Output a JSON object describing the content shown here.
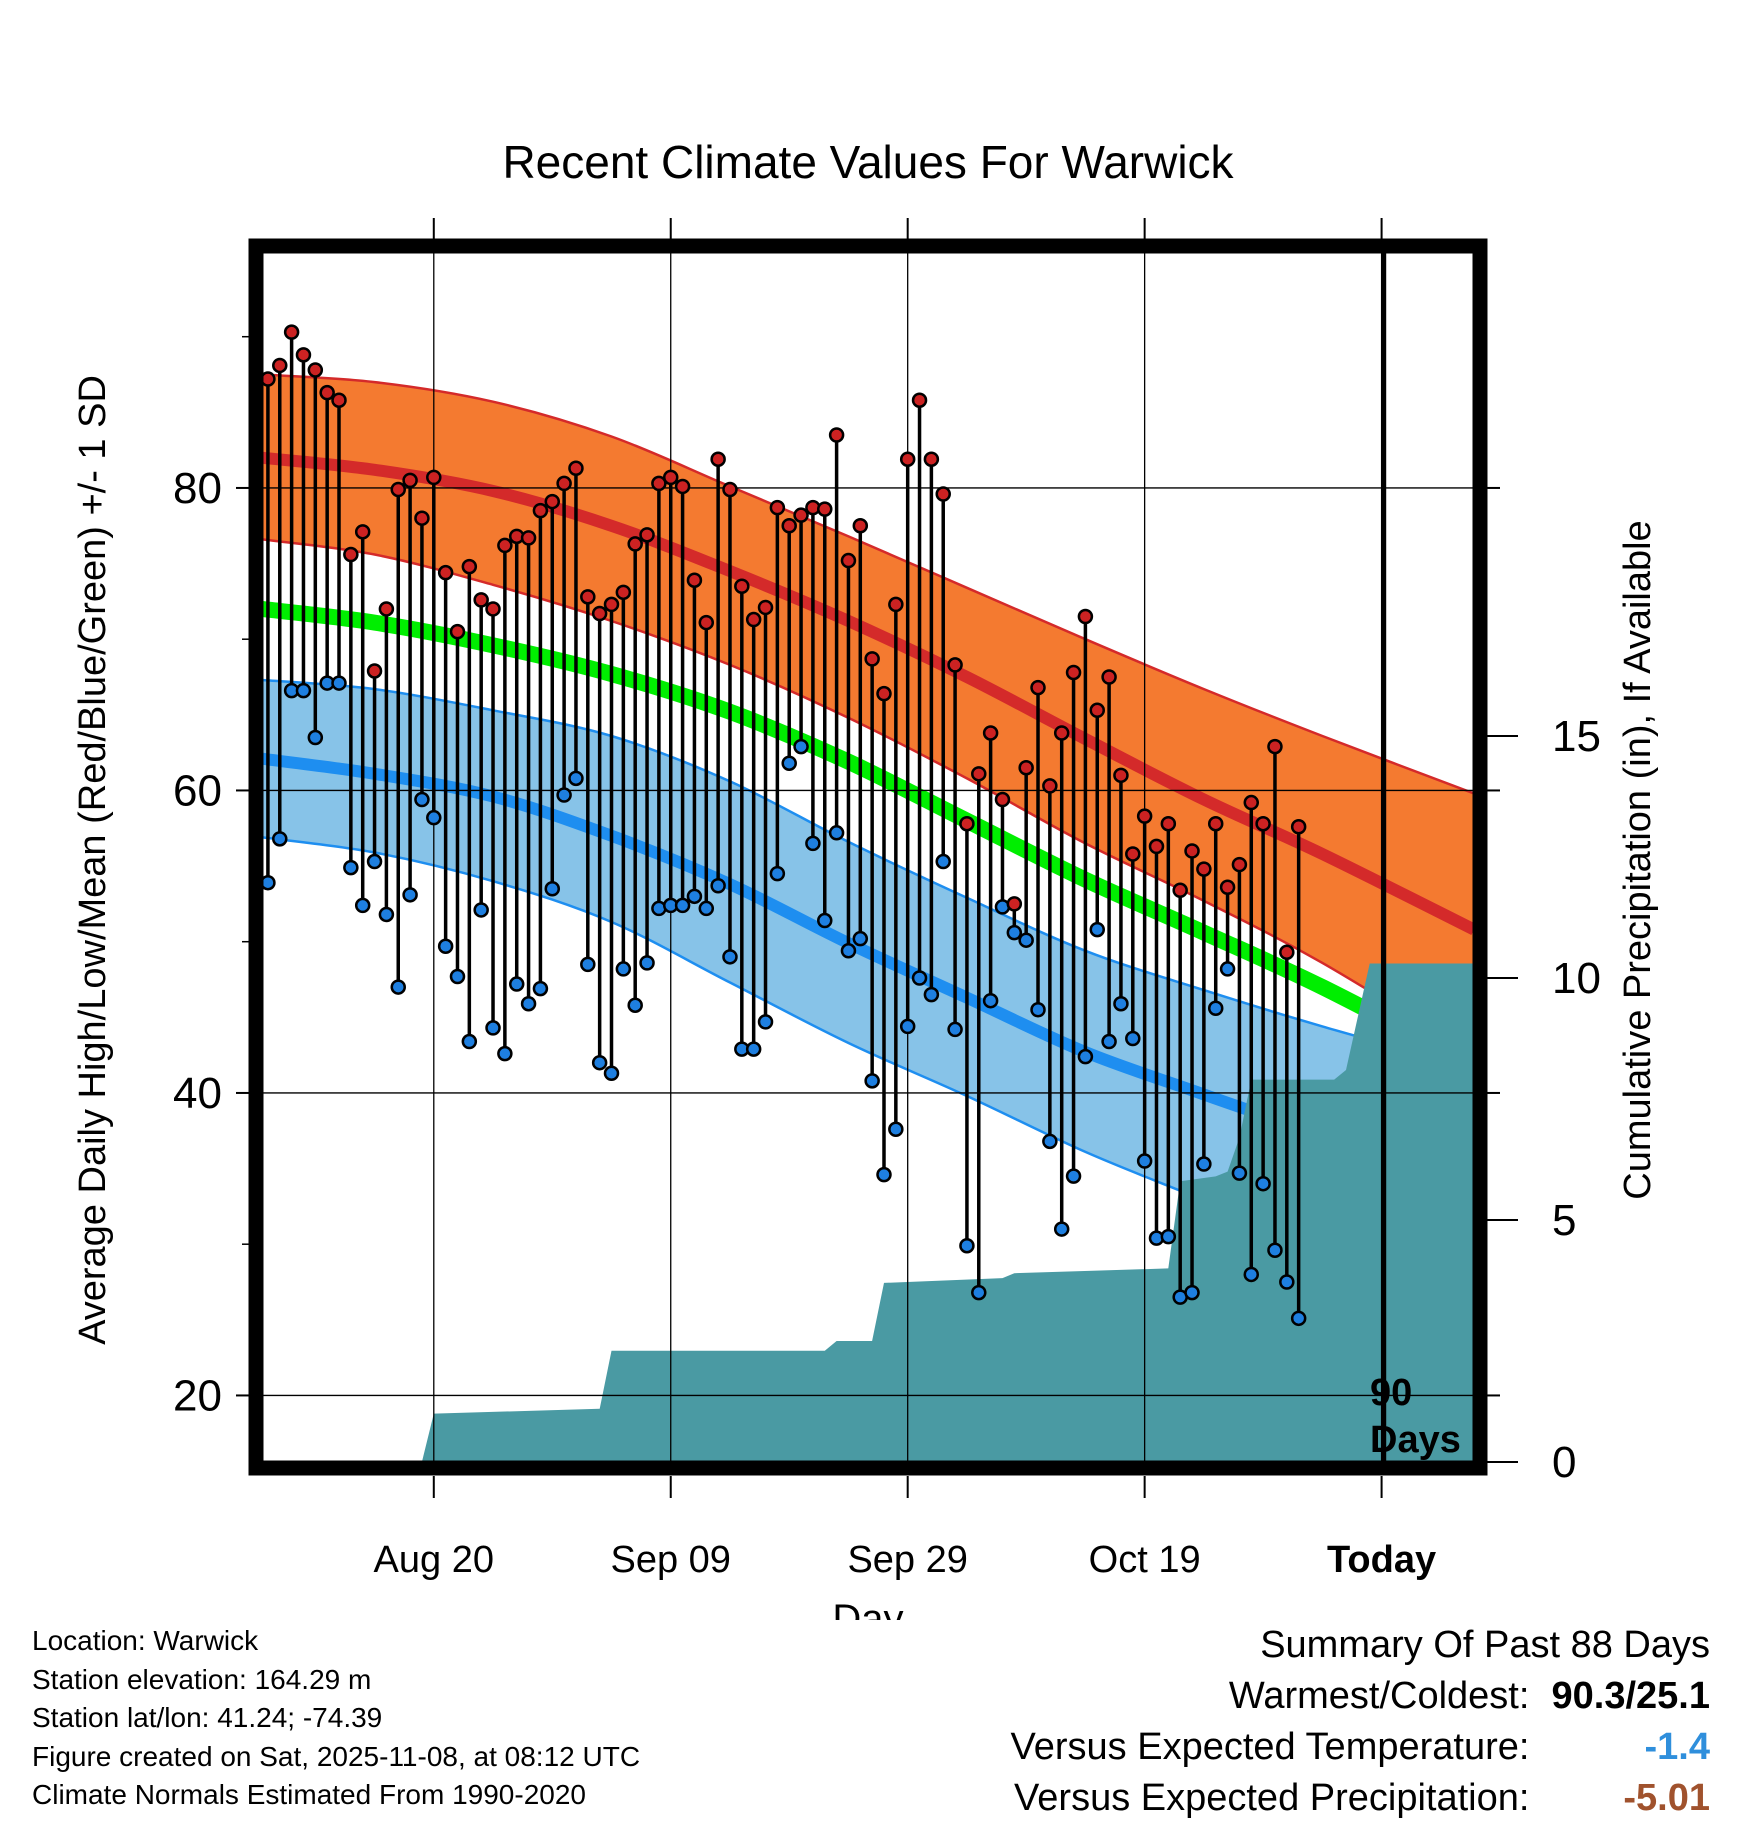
{
  "chart_data": {
    "type": "line",
    "title": "Recent Climate Values For Warwick",
    "xlabel": "Day",
    "ylabel": "Average Daily High/Low/Mean (Red/Blue/Green) +/- 1 SD",
    "y2label": "Cumulative Precipitation (in), If Available",
    "ylim": [
      15.6,
      95.6
    ],
    "y2lim": [
      0,
      25
    ],
    "xlim": [
      -14.5,
      87.8
    ],
    "yticks": [
      "20",
      "40",
      "60",
      "80"
    ],
    "y2ticks": [
      "0",
      "5",
      "10",
      "15"
    ],
    "xticks": [
      {
        "label": "Aug 20",
        "day": 0
      },
      {
        "label": "Sep 09",
        "day": 20
      },
      {
        "label": "Sep 29",
        "day": 40
      },
      {
        "label": "Oct 19",
        "day": 60
      },
      {
        "label": "Today",
        "day": 80
      }
    ],
    "today_marker": {
      "day": 80.2,
      "label_line1": "90",
      "label_line2": "Days"
    },
    "colors": {
      "high_band": "#f47a30",
      "high_mean": "#d42a2a",
      "low_band": "#87c3e8",
      "low_mean": "#1e8ef0",
      "mean": "#00ee00",
      "precip": "#4a9aa3",
      "high_point": "#cc2222",
      "low_point": "#1e7fe0"
    },
    "normals": {
      "days": [
        -14.5,
        -5,
        5,
        15,
        25,
        35,
        45,
        55,
        65,
        75,
        87.8
      ],
      "high_upper": [
        87.5,
        87.0,
        85.7,
        83.4,
        80.1,
        76.8,
        73.4,
        70.0,
        66.7,
        63.6,
        59.8
      ],
      "high_mean": [
        82.0,
        81.2,
        79.8,
        77.5,
        74.5,
        71.2,
        67.5,
        63.4,
        59.4,
        55.8,
        50.8
      ],
      "high_lower": [
        76.6,
        75.6,
        73.6,
        71.2,
        68.3,
        64.8,
        60.8,
        56.5,
        52.7,
        48.6,
        42.5
      ],
      "mean": [
        72.0,
        71.1,
        69.6,
        67.7,
        65.2,
        61.9,
        58.0,
        54.1,
        50.6,
        47.0,
        41.8
      ],
      "low_upper": [
        67.3,
        66.7,
        65.3,
        63.6,
        60.6,
        56.6,
        52.9,
        49.4,
        46.8,
        44.4,
        41.6
      ],
      "low_mean": [
        62.1,
        61.1,
        59.6,
        57.0,
        53.8,
        49.9,
        46.3,
        42.7,
        39.9,
        37.1,
        33.0
      ],
      "low_lower": [
        56.9,
        55.9,
        54.0,
        51.3,
        47.3,
        43.3,
        39.8,
        36.1,
        32.9,
        29.6,
        24.0
      ]
    },
    "series": [
      {
        "name": "Daily High",
        "values": [
          87.2,
          88.1,
          90.3,
          88.8,
          87.8,
          86.3,
          85.8,
          75.6,
          77.1,
          67.9,
          72.0,
          79.9,
          80.5,
          78.0,
          80.7,
          74.4,
          70.5,
          74.8,
          72.6,
          72.0,
          76.2,
          76.8,
          76.7,
          78.5,
          79.1,
          80.3,
          81.3,
          72.8,
          71.7,
          72.3,
          73.1,
          76.3,
          76.9,
          80.3,
          80.7,
          80.1,
          73.9,
          71.1,
          81.9,
          79.9,
          73.5,
          71.3,
          72.1,
          78.7,
          77.5,
          78.2,
          78.7,
          78.6,
          83.5,
          75.2,
          77.5,
          68.7,
          66.4,
          72.3,
          81.9,
          85.8,
          81.9,
          79.6,
          68.3,
          57.8,
          61.1,
          63.8,
          59.4,
          52.5,
          61.5,
          66.8,
          60.3,
          63.8,
          67.8,
          71.5,
          65.3,
          67.5,
          61.0,
          55.8,
          58.3,
          56.3,
          57.8,
          53.4,
          56.0,
          54.8,
          57.8,
          53.6,
          55.1,
          59.2,
          57.8,
          62.9,
          49.3,
          57.6
        ]
      },
      {
        "name": "Daily Low",
        "values": [
          53.9,
          56.8,
          66.6,
          66.6,
          63.5,
          67.1,
          67.1,
          54.9,
          52.4,
          55.3,
          51.8,
          47.0,
          53.1,
          59.4,
          58.2,
          49.7,
          47.7,
          43.4,
          52.1,
          44.3,
          42.6,
          47.2,
          45.9,
          46.9,
          53.5,
          59.7,
          60.8,
          48.5,
          42.0,
          41.3,
          48.2,
          45.8,
          48.6,
          52.2,
          52.4,
          52.4,
          53.0,
          52.2,
          53.7,
          49.0,
          42.9,
          42.9,
          44.7,
          54.5,
          61.8,
          62.9,
          56.5,
          51.4,
          57.2,
          49.4,
          50.2,
          40.8,
          34.6,
          37.6,
          44.4,
          47.6,
          46.5,
          55.3,
          44.2,
          29.9,
          26.8,
          46.1,
          52.3,
          50.6,
          50.1,
          45.5,
          36.8,
          31.0,
          34.5,
          42.4,
          50.8,
          43.4,
          45.9,
          43.6,
          35.5,
          30.4,
          30.5,
          26.5,
          26.8,
          35.3,
          45.6,
          48.2,
          34.7,
          28.0,
          34.0,
          29.6,
          27.5,
          25.1
        ]
      }
    ],
    "precip": {
      "days": [
        -1,
        0,
        14,
        15,
        33,
        34,
        37,
        38,
        48,
        49,
        62,
        63,
        66,
        67,
        68,
        69,
        76,
        77,
        79,
        80
      ],
      "values": [
        0,
        1,
        1.1,
        2.3,
        2.3,
        2.5,
        2.5,
        3.7,
        3.8,
        3.9,
        4.0,
        5.8,
        5.9,
        6.0,
        6.7,
        7.9,
        7.9,
        8.1,
        10.3,
        10.3
      ],
      "note": "approximate cumulative step series read from chart"
    }
  },
  "station_info": {
    "location": "Location: Warwick",
    "elevation": "Station elevation: 164.29 m",
    "latlon": "Station lat/lon: 41.24; -74.39",
    "created": "Figure created on Sat, 2025-11-08, at 08:12 UTC",
    "normals": "Climate Normals Estimated From 1990-2020"
  },
  "summary": {
    "title": "Summary Of Past 88 Days",
    "warm_cold_label": "Warmest/Coldest:",
    "warm_cold_value": "90.3/25.1",
    "temp_label": "Versus Expected Temperature:",
    "temp_value": "-1.4",
    "temp_color": "#2f8fdc",
    "precip_label": "Versus Expected Precipitation:",
    "precip_value": "-5.01",
    "precip_color": "#a0522d"
  }
}
